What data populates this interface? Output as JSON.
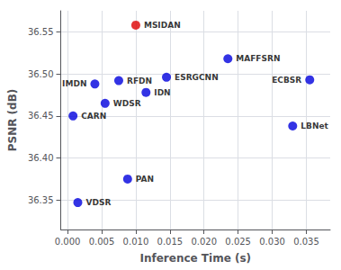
{
  "chart_data": {
    "type": "scatter",
    "x": [
      0.01,
      0.0235,
      0.0075,
      0.004,
      0.0055,
      0.0115,
      0.0145,
      0.0008,
      0.0355,
      0.033,
      0.0088,
      0.0015
    ],
    "values": [
      36.558,
      36.518,
      36.492,
      36.488,
      36.465,
      36.478,
      36.496,
      36.45,
      36.493,
      36.438,
      36.375,
      36.347
    ],
    "labels": [
      "MSIDAN",
      "MAFFSRN",
      "RFDN",
      "IMDN",
      "WDSR",
      "IDN",
      "ESRGCNN",
      "CARN",
      "ECBSR",
      "LBNet",
      "PAN",
      "VDSR"
    ],
    "colors": [
      "#dd0000",
      "#0000dd",
      "#0000dd",
      "#0000dd",
      "#0000dd",
      "#0000dd",
      "#0000dd",
      "#0000dd",
      "#0000dd",
      "#0000dd",
      "#0000dd",
      "#0000dd"
    ],
    "xlabel": "Inference Time (s)",
    "ylabel": "PSNR (dB)",
    "xlim": [
      -0.001,
      0.0385
    ],
    "ylim": [
      36.315,
      36.575
    ],
    "xticks": [
      {
        "value": 0,
        "label": "0.000"
      },
      0.005,
      {
        "value": 0.01,
        "label": "0.010"
      },
      0.015,
      {
        "value": 0.02,
        "label": "0.020"
      },
      0.025,
      {
        "value": 0.03,
        "label": "0.030"
      },
      0.035
    ],
    "yticks": [
      36.35,
      {
        "value": 36.4,
        "label": "36.40"
      },
      36.45,
      {
        "value": 36.5,
        "label": "36.50"
      },
      36.55
    ],
    "grid": true
  }
}
